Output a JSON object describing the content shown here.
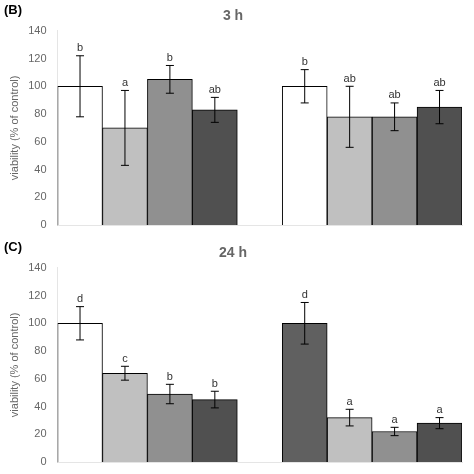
{
  "chart_data": [
    {
      "type": "bar",
      "title": "3 h",
      "annotations": [
        "(B)"
      ],
      "ylabel": "viability (% of control)",
      "categories": [
        null,
        null,
        null,
        null
      ],
      "series": [
        {
          "values": [
            100,
            70,
            105,
            83
          ],
          "errors": [
            22,
            27,
            10,
            9
          ],
          "letters": [
            "b",
            "a",
            "b",
            "ab"
          ],
          "colors": [
            "#ffffff",
            "#c0c0c0",
            "#909090",
            "#505050"
          ]
        },
        {
          "values": [
            100,
            78,
            78,
            85
          ],
          "errors": [
            12,
            22,
            10,
            12
          ],
          "letters": [
            "b",
            "ab",
            "ab",
            "ab"
          ],
          "colors": [
            "#ffffff",
            "#c0c0c0",
            "#909090",
            "#505050"
          ]
        }
      ],
      "edge_color": "#000000",
      "ylim": [
        0,
        140
      ],
      "yticks": [
        0,
        20,
        40,
        60,
        80,
        100,
        120,
        140
      ],
      "grid": false,
      "tick_labels": "y"
    },
    {
      "type": "bar",
      "title": "24 h",
      "annotations": [
        "(C)"
      ],
      "ylabel": "viability (% of control)",
      "categories": [
        null,
        null,
        null,
        null
      ],
      "series": [
        {
          "values": [
            100,
            64,
            49,
            45
          ],
          "errors": [
            12,
            5,
            7,
            6
          ],
          "letters": [
            "d",
            "c",
            "b",
            "b"
          ],
          "colors": [
            "#ffffff",
            "#c0c0c0",
            "#909090",
            "#505050"
          ]
        },
        {
          "values": [
            100,
            32,
            22,
            28
          ],
          "errors": [
            15,
            6,
            3,
            4
          ],
          "letters": [
            "d",
            "a",
            "a",
            "a"
          ],
          "colors": [
            "#606060",
            "#c0c0c0",
            "#909090",
            "#505050"
          ]
        }
      ],
      "edge_color": "#000000",
      "ylim": [
        0,
        140
      ],
      "yticks": [
        0,
        20,
        40,
        60,
        80,
        100,
        120,
        140
      ],
      "grid": false,
      "tick_labels": "y"
    }
  ]
}
